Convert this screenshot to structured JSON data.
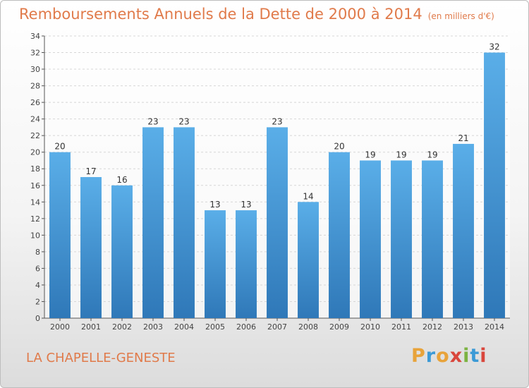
{
  "header": {
    "title": "Remboursements Annuels de la Dette de 2000 à 2014",
    "unit": "(en milliers d'€)"
  },
  "footer": {
    "commune": "LA CHAPELLE-GENESTE",
    "logo_text": "Proxiti"
  },
  "colors": {
    "title": "#e07a4a",
    "bar_light": "#5aaee8",
    "bar_dark": "#2f78b8",
    "logo_letters": [
      "#e8a33a",
      "#3c9ad6",
      "#e8a33a",
      "#d9463c",
      "#7cb342",
      "#3c9ad6",
      "#d9463c"
    ]
  },
  "chart_data": {
    "type": "bar",
    "title": "Remboursements Annuels de la Dette de 2000 à 2014",
    "subtitle": "(en milliers d'€)",
    "categories": [
      "2000",
      "2001",
      "2002",
      "2003",
      "2004",
      "2005",
      "2006",
      "2007",
      "2008",
      "2009",
      "2010",
      "2011",
      "2012",
      "2013",
      "2014"
    ],
    "values": [
      20,
      17,
      16,
      23,
      23,
      13,
      13,
      23,
      14,
      20,
      19,
      19,
      19,
      21,
      32
    ],
    "ylim": [
      0,
      34
    ],
    "yticks": [
      0,
      2,
      4,
      6,
      8,
      10,
      12,
      14,
      16,
      18,
      20,
      22,
      24,
      26,
      28,
      30,
      32,
      34
    ],
    "grid": true,
    "legend": "none"
  }
}
